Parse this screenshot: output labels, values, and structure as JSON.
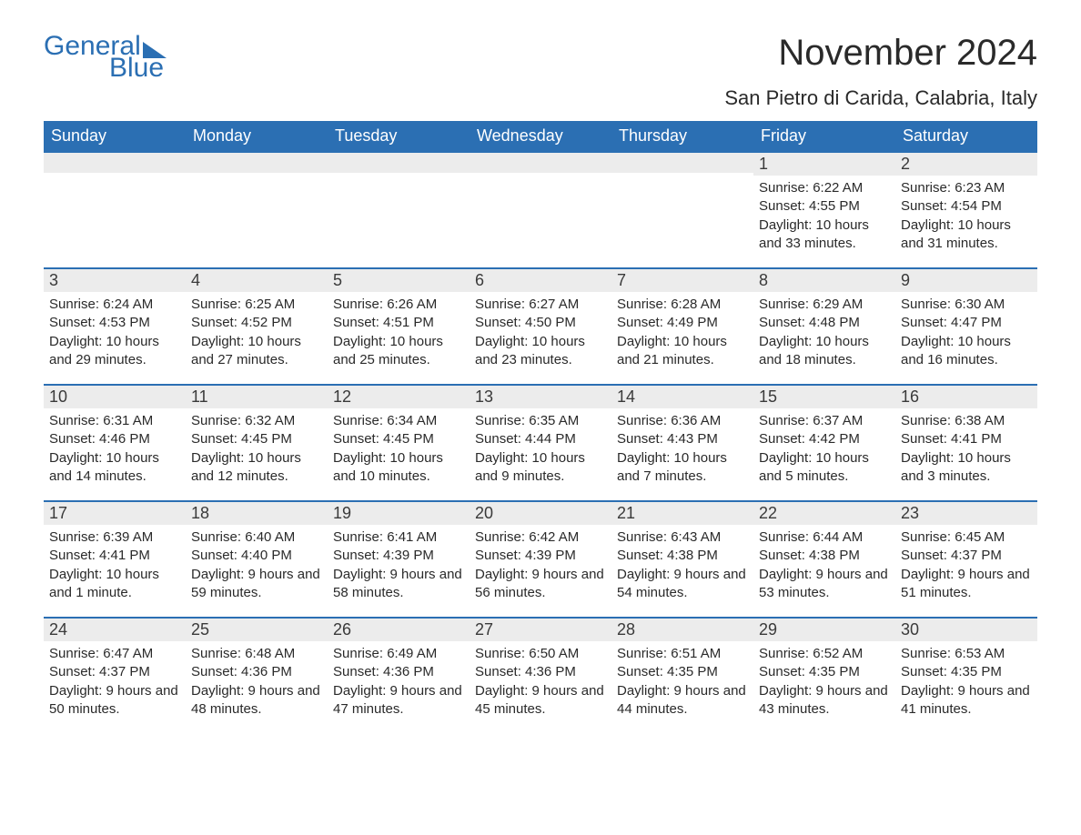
{
  "logo": {
    "general": "General",
    "blue": "Blue"
  },
  "title": "November 2024",
  "location": "San Pietro di Carida, Calabria, Italy",
  "colors": {
    "brand": "#2b6fb3",
    "header_bg": "#2b6fb3",
    "header_text": "#ffffff",
    "daynum_bg": "#ececec",
    "daynum_border": "#2b6fb3",
    "text": "#2a2a2a",
    "background": "#ffffff"
  },
  "typography": {
    "title_fontsize": 40,
    "location_fontsize": 22,
    "header_fontsize": 18,
    "daynum_fontsize": 18,
    "body_fontsize": 15,
    "logo_fontsize": 30
  },
  "dayHeaders": [
    "Sunday",
    "Monday",
    "Tuesday",
    "Wednesday",
    "Thursday",
    "Friday",
    "Saturday"
  ],
  "weeks": [
    [
      {
        "empty": true
      },
      {
        "empty": true
      },
      {
        "empty": true
      },
      {
        "empty": true
      },
      {
        "empty": true
      },
      {
        "num": "1",
        "sunrise": "Sunrise: 6:22 AM",
        "sunset": "Sunset: 4:55 PM",
        "daylight": "Daylight: 10 hours and 33 minutes."
      },
      {
        "num": "2",
        "sunrise": "Sunrise: 6:23 AM",
        "sunset": "Sunset: 4:54 PM",
        "daylight": "Daylight: 10 hours and 31 minutes."
      }
    ],
    [
      {
        "num": "3",
        "sunrise": "Sunrise: 6:24 AM",
        "sunset": "Sunset: 4:53 PM",
        "daylight": "Daylight: 10 hours and 29 minutes."
      },
      {
        "num": "4",
        "sunrise": "Sunrise: 6:25 AM",
        "sunset": "Sunset: 4:52 PM",
        "daylight": "Daylight: 10 hours and 27 minutes."
      },
      {
        "num": "5",
        "sunrise": "Sunrise: 6:26 AM",
        "sunset": "Sunset: 4:51 PM",
        "daylight": "Daylight: 10 hours and 25 minutes."
      },
      {
        "num": "6",
        "sunrise": "Sunrise: 6:27 AM",
        "sunset": "Sunset: 4:50 PM",
        "daylight": "Daylight: 10 hours and 23 minutes."
      },
      {
        "num": "7",
        "sunrise": "Sunrise: 6:28 AM",
        "sunset": "Sunset: 4:49 PM",
        "daylight": "Daylight: 10 hours and 21 minutes."
      },
      {
        "num": "8",
        "sunrise": "Sunrise: 6:29 AM",
        "sunset": "Sunset: 4:48 PM",
        "daylight": "Daylight: 10 hours and 18 minutes."
      },
      {
        "num": "9",
        "sunrise": "Sunrise: 6:30 AM",
        "sunset": "Sunset: 4:47 PM",
        "daylight": "Daylight: 10 hours and 16 minutes."
      }
    ],
    [
      {
        "num": "10",
        "sunrise": "Sunrise: 6:31 AM",
        "sunset": "Sunset: 4:46 PM",
        "daylight": "Daylight: 10 hours and 14 minutes."
      },
      {
        "num": "11",
        "sunrise": "Sunrise: 6:32 AM",
        "sunset": "Sunset: 4:45 PM",
        "daylight": "Daylight: 10 hours and 12 minutes."
      },
      {
        "num": "12",
        "sunrise": "Sunrise: 6:34 AM",
        "sunset": "Sunset: 4:45 PM",
        "daylight": "Daylight: 10 hours and 10 minutes."
      },
      {
        "num": "13",
        "sunrise": "Sunrise: 6:35 AM",
        "sunset": "Sunset: 4:44 PM",
        "daylight": "Daylight: 10 hours and 9 minutes."
      },
      {
        "num": "14",
        "sunrise": "Sunrise: 6:36 AM",
        "sunset": "Sunset: 4:43 PM",
        "daylight": "Daylight: 10 hours and 7 minutes."
      },
      {
        "num": "15",
        "sunrise": "Sunrise: 6:37 AM",
        "sunset": "Sunset: 4:42 PM",
        "daylight": "Daylight: 10 hours and 5 minutes."
      },
      {
        "num": "16",
        "sunrise": "Sunrise: 6:38 AM",
        "sunset": "Sunset: 4:41 PM",
        "daylight": "Daylight: 10 hours and 3 minutes."
      }
    ],
    [
      {
        "num": "17",
        "sunrise": "Sunrise: 6:39 AM",
        "sunset": "Sunset: 4:41 PM",
        "daylight": "Daylight: 10 hours and 1 minute."
      },
      {
        "num": "18",
        "sunrise": "Sunrise: 6:40 AM",
        "sunset": "Sunset: 4:40 PM",
        "daylight": "Daylight: 9 hours and 59 minutes."
      },
      {
        "num": "19",
        "sunrise": "Sunrise: 6:41 AM",
        "sunset": "Sunset: 4:39 PM",
        "daylight": "Daylight: 9 hours and 58 minutes."
      },
      {
        "num": "20",
        "sunrise": "Sunrise: 6:42 AM",
        "sunset": "Sunset: 4:39 PM",
        "daylight": "Daylight: 9 hours and 56 minutes."
      },
      {
        "num": "21",
        "sunrise": "Sunrise: 6:43 AM",
        "sunset": "Sunset: 4:38 PM",
        "daylight": "Daylight: 9 hours and 54 minutes."
      },
      {
        "num": "22",
        "sunrise": "Sunrise: 6:44 AM",
        "sunset": "Sunset: 4:38 PM",
        "daylight": "Daylight: 9 hours and 53 minutes."
      },
      {
        "num": "23",
        "sunrise": "Sunrise: 6:45 AM",
        "sunset": "Sunset: 4:37 PM",
        "daylight": "Daylight: 9 hours and 51 minutes."
      }
    ],
    [
      {
        "num": "24",
        "sunrise": "Sunrise: 6:47 AM",
        "sunset": "Sunset: 4:37 PM",
        "daylight": "Daylight: 9 hours and 50 minutes."
      },
      {
        "num": "25",
        "sunrise": "Sunrise: 6:48 AM",
        "sunset": "Sunset: 4:36 PM",
        "daylight": "Daylight: 9 hours and 48 minutes."
      },
      {
        "num": "26",
        "sunrise": "Sunrise: 6:49 AM",
        "sunset": "Sunset: 4:36 PM",
        "daylight": "Daylight: 9 hours and 47 minutes."
      },
      {
        "num": "27",
        "sunrise": "Sunrise: 6:50 AM",
        "sunset": "Sunset: 4:36 PM",
        "daylight": "Daylight: 9 hours and 45 minutes."
      },
      {
        "num": "28",
        "sunrise": "Sunrise: 6:51 AM",
        "sunset": "Sunset: 4:35 PM",
        "daylight": "Daylight: 9 hours and 44 minutes."
      },
      {
        "num": "29",
        "sunrise": "Sunrise: 6:52 AM",
        "sunset": "Sunset: 4:35 PM",
        "daylight": "Daylight: 9 hours and 43 minutes."
      },
      {
        "num": "30",
        "sunrise": "Sunrise: 6:53 AM",
        "sunset": "Sunset: 4:35 PM",
        "daylight": "Daylight: 9 hours and 41 minutes."
      }
    ]
  ]
}
